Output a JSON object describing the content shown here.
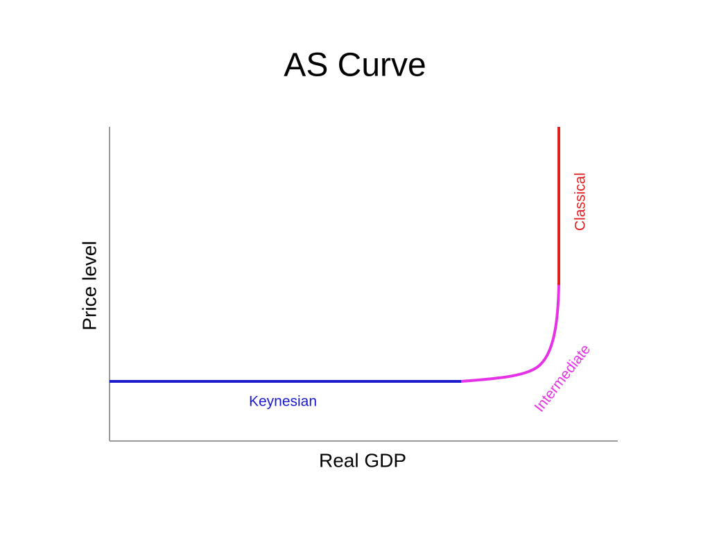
{
  "title": "AS Curve",
  "diagram": {
    "y_axis_label": "Price level",
    "x_axis_label": "Real GDP",
    "segments": [
      {
        "label": "Keynesian"
      },
      {
        "label": "Intermediate"
      },
      {
        "label": "Classical"
      }
    ]
  }
}
